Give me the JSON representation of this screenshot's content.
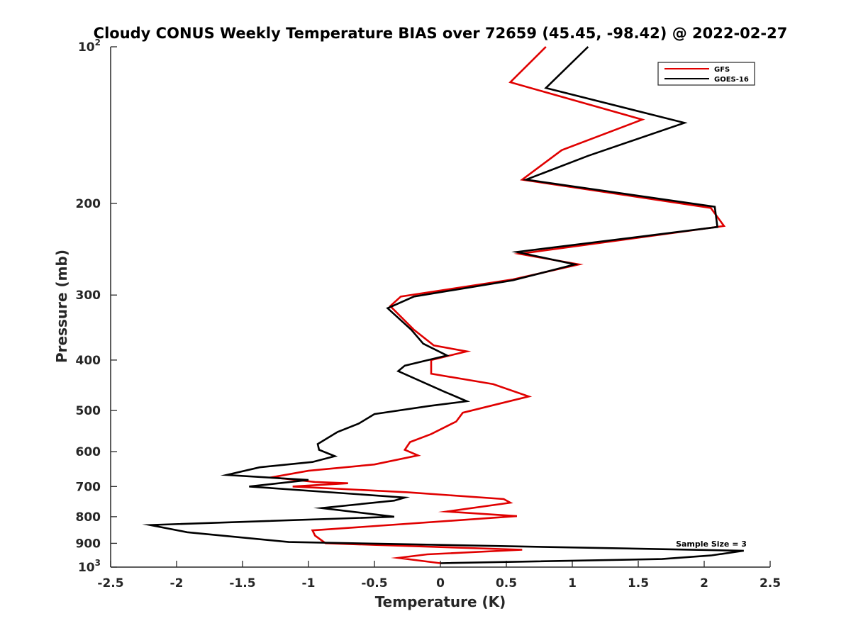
{
  "chart_data": {
    "type": "line",
    "title": "Cloudy CONUS Weekly Temperature BIAS over 72659 (45.45, -98.42) @ 2022-02-27",
    "xlabel": "Temperature (K)",
    "ylabel": "Pressure (mb)",
    "xlim": [
      -2.5,
      2.5
    ],
    "ylim": [
      1000,
      100
    ],
    "yscale": "log",
    "y_reversed": true,
    "grid": false,
    "legend_position": "top-right",
    "x_ticks": [
      -2.5,
      -2,
      -1.5,
      -1,
      -0.5,
      0,
      0.5,
      1,
      1.5,
      2,
      2.5
    ],
    "x_tick_labels": [
      "-2.5",
      "-2",
      "-1.5",
      "-1",
      "-0.5",
      "0",
      "0.5",
      "1",
      "1.5",
      "2",
      "2.5"
    ],
    "y_ticks": [
      200,
      300,
      400,
      500,
      600,
      700,
      800,
      900
    ],
    "y_tick_labels": [
      "200",
      "300",
      "400",
      "500",
      "600",
      "700",
      "800",
      "900"
    ],
    "y_edge_ticks": [
      100,
      1000
    ],
    "y_edge_labels": [
      {
        "base": "10",
        "exp": "2"
      },
      {
        "base": "10",
        "exp": "3"
      }
    ],
    "annotation": "Sample Size = 3",
    "series": [
      {
        "name": "GFS",
        "color": "#e00000",
        "points": [
          [
            0.8,
            100
          ],
          [
            0.53,
            117
          ],
          [
            1.53,
            138
          ],
          [
            0.92,
            158
          ],
          [
            0.62,
            180
          ],
          [
            2.05,
            204
          ],
          [
            2.15,
            221
          ],
          [
            0.6,
            250
          ],
          [
            1.05,
            262
          ],
          [
            0.55,
            280
          ],
          [
            -0.3,
            302
          ],
          [
            -0.38,
            315
          ],
          [
            -0.2,
            350
          ],
          [
            -0.05,
            375
          ],
          [
            0.2,
            385
          ],
          [
            -0.07,
            400
          ],
          [
            -0.07,
            425
          ],
          [
            0.4,
            445
          ],
          [
            0.67,
            470
          ],
          [
            0.45,
            485
          ],
          [
            0.17,
            505
          ],
          [
            0.12,
            525
          ],
          [
            -0.07,
            555
          ],
          [
            -0.23,
            575
          ],
          [
            -0.27,
            595
          ],
          [
            -0.17,
            610
          ],
          [
            -0.5,
            635
          ],
          [
            -1.0,
            653
          ],
          [
            -1.28,
            672
          ],
          [
            -0.95,
            686
          ],
          [
            -0.7,
            690
          ],
          [
            -1.12,
            700
          ],
          [
            -0.25,
            718
          ],
          [
            0.48,
            740
          ],
          [
            0.53,
            752
          ],
          [
            0.05,
            782
          ],
          [
            0.58,
            798
          ],
          [
            -0.97,
            850
          ],
          [
            -0.95,
            870
          ],
          [
            -0.87,
            900
          ],
          [
            0.62,
            926
          ],
          [
            -0.1,
            945
          ],
          [
            -0.32,
            960
          ],
          [
            0.0,
            983
          ]
        ]
      },
      {
        "name": "GOES-16",
        "color": "#000000",
        "points": [
          [
            1.12,
            100
          ],
          [
            0.8,
            120
          ],
          [
            1.85,
            140
          ],
          [
            1.12,
            162
          ],
          [
            0.65,
            180
          ],
          [
            2.08,
            203
          ],
          [
            2.1,
            222
          ],
          [
            0.58,
            248
          ],
          [
            1.02,
            262
          ],
          [
            0.55,
            281
          ],
          [
            -0.2,
            302
          ],
          [
            -0.4,
            318
          ],
          [
            -0.22,
            350
          ],
          [
            -0.13,
            372
          ],
          [
            0.05,
            392
          ],
          [
            -0.27,
            410
          ],
          [
            -0.32,
            420
          ],
          [
            0.03,
            460
          ],
          [
            0.2,
            480
          ],
          [
            -0.08,
            490
          ],
          [
            -0.5,
            508
          ],
          [
            -0.62,
            530
          ],
          [
            -0.78,
            550
          ],
          [
            -0.93,
            580
          ],
          [
            -0.92,
            595
          ],
          [
            -0.8,
            612
          ],
          [
            -0.97,
            628
          ],
          [
            -1.37,
            643
          ],
          [
            -1.62,
            665
          ],
          [
            -1.0,
            680
          ],
          [
            -1.45,
            700
          ],
          [
            -0.27,
            735
          ],
          [
            -0.35,
            745
          ],
          [
            -0.9,
            770
          ],
          [
            -0.35,
            800
          ],
          [
            -2.2,
            830
          ],
          [
            -1.92,
            857
          ],
          [
            -1.15,
            895
          ],
          [
            2.3,
            930
          ],
          [
            2.05,
            950
          ],
          [
            1.68,
            965
          ],
          [
            0.0,
            983
          ]
        ]
      }
    ]
  }
}
